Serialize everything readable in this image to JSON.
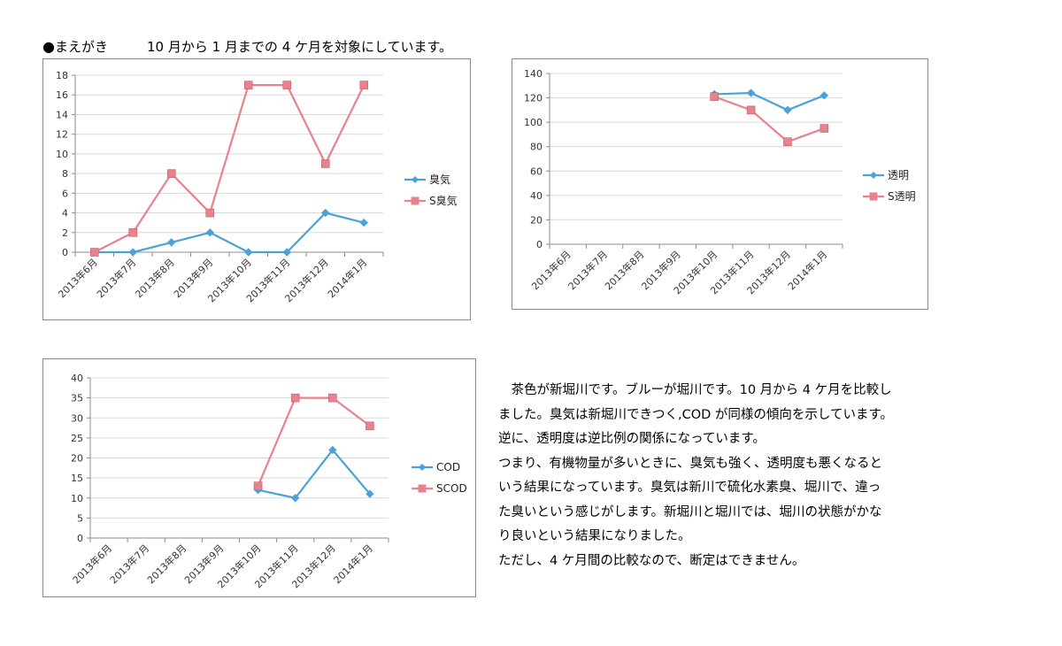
{
  "heading": {
    "bullet": "●",
    "title": "まえがき",
    "note": "10 月から 1 月までの 4 ケ月を対象にしています。"
  },
  "body_text": [
    "　茶色が新堀川です。ブルーが堀川です。10 月から 4 ケ月を比較し",
    "ました。臭気は新堀川できつく,COD が同様の傾向を示しています。",
    "逆に、透明度は逆比例の関係になっています。",
    "つまり、有機物量が多いときに、臭気も強く、透明度も悪くなると",
    "いう結果になっています。臭気は新川で硫化水素臭、堀川で、違っ",
    "た臭いという感じがします。新堀川と堀川では、堀川の状態がかな",
    "り良いという結果になりました。",
    "ただし、4 ケ月間の比較なので、断定はできません。"
  ],
  "colors": {
    "blue": "#4aa3d6",
    "pink": "#e8828c",
    "grid": "#d9d9d9",
    "axis": "#8c8c8c"
  },
  "chart_data": [
    {
      "id": "odor",
      "type": "line",
      "categories": [
        "2013年6月",
        "2013年7月",
        "2013年8月",
        "2013年9月",
        "2013年10月",
        "2013年11月",
        "2013年12月",
        "2014年1月"
      ],
      "ylim": [
        0,
        18
      ],
      "ytick_step": 2,
      "grid": true,
      "legend": "right",
      "series": [
        {
          "name": "臭気",
          "color": "#4aa3d6",
          "marker": "diamond",
          "values": [
            0,
            0,
            1,
            2,
            0,
            0,
            4,
            3
          ]
        },
        {
          "name": "S臭気",
          "color": "#e8828c",
          "marker": "square",
          "values": [
            0,
            2,
            8,
            4,
            17,
            17,
            9,
            17
          ]
        }
      ]
    },
    {
      "id": "transparency",
      "type": "line",
      "categories": [
        "2013年6月",
        "2013年7月",
        "2013年8月",
        "2013年9月",
        "2013年10月",
        "2013年11月",
        "2013年12月",
        "2014年1月"
      ],
      "ylim": [
        0,
        140
      ],
      "ytick_step": 20,
      "grid": true,
      "legend": "right",
      "series": [
        {
          "name": "透明",
          "color": "#4aa3d6",
          "marker": "diamond",
          "values": [
            null,
            null,
            null,
            null,
            123,
            124,
            110,
            122
          ]
        },
        {
          "name": "S透明",
          "color": "#e8828c",
          "marker": "square",
          "values": [
            null,
            null,
            null,
            null,
            121,
            110,
            84,
            95
          ]
        }
      ]
    },
    {
      "id": "cod",
      "type": "line",
      "categories": [
        "2013年6月",
        "2013年7月",
        "2013年8月",
        "2013年9月",
        "2013年10月",
        "2013年11月",
        "2013年12月",
        "2014年1月"
      ],
      "ylim": [
        0,
        40
      ],
      "ytick_step": 5,
      "grid": true,
      "legend": "right",
      "series": [
        {
          "name": "COD",
          "color": "#4aa3d6",
          "marker": "diamond",
          "values": [
            null,
            null,
            null,
            null,
            12,
            10,
            22,
            11
          ]
        },
        {
          "name": "SCOD",
          "color": "#e8828c",
          "marker": "square",
          "values": [
            null,
            null,
            null,
            null,
            13,
            35,
            35,
            28
          ]
        }
      ]
    }
  ]
}
